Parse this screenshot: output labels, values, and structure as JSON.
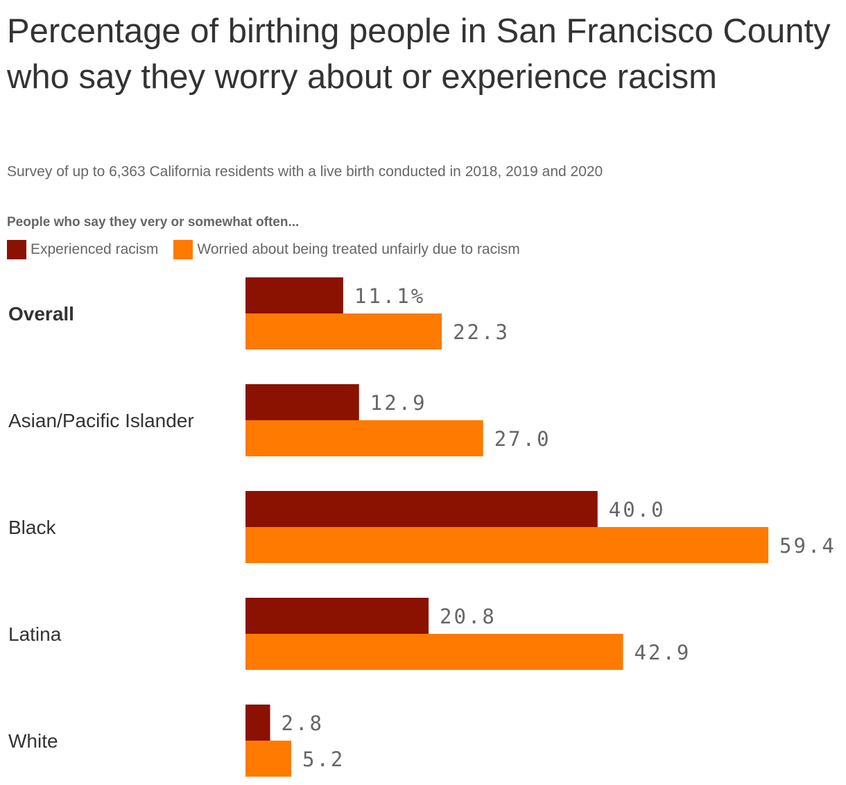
{
  "chart_data": {
    "type": "bar",
    "orientation": "horizontal",
    "title": "Percentage of birthing people in San Francisco County who say they worry about or experience racism",
    "subtitle": "Survey of up to 6,363 California residents with a live birth conducted in 2018, 2019 and 2020",
    "legend_title": "People who say they very or somewhat often...",
    "legend_placement": "top-left",
    "categories": [
      "Overall",
      "Asian/Pacific Islander",
      "Black",
      "Latina",
      "White"
    ],
    "series": [
      {
        "name": "Experienced racism",
        "color": "#8b1100",
        "values": [
          11.1,
          12.9,
          40.0,
          20.8,
          2.8
        ],
        "labels": [
          "11.1%",
          "12.9",
          "40.0",
          "20.8",
          "2.8"
        ]
      },
      {
        "name": "Worried about being treated unfairly due to racism",
        "color": "#ff7a00",
        "values": [
          22.3,
          27.0,
          59.4,
          42.9,
          5.2
        ],
        "labels": [
          "22.3",
          "27.0",
          "59.4",
          "42.9",
          "5.2"
        ]
      }
    ],
    "xlim": [
      0,
      59.4
    ],
    "grid": false
  }
}
